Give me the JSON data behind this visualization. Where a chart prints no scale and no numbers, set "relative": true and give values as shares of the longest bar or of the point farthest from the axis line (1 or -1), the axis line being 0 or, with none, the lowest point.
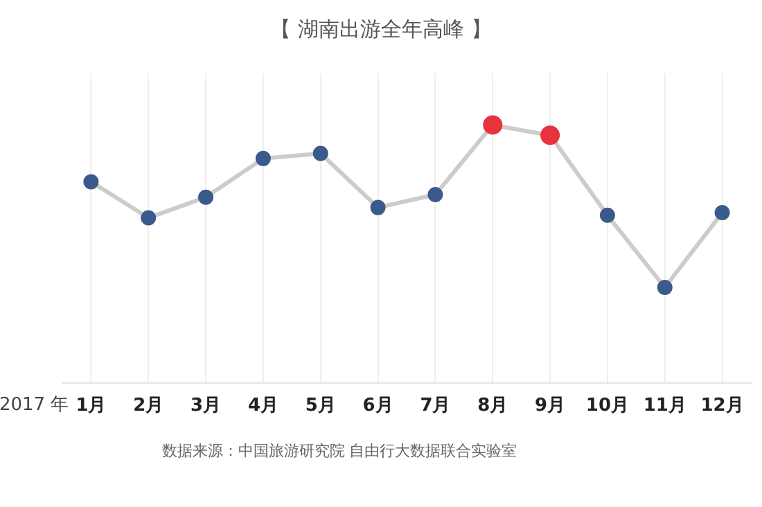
{
  "chart_data": {
    "type": "line",
    "title": "【 湖南出游全年高峰 】",
    "xlabel": "2017 年",
    "categories": [
      "1月",
      "2月",
      "3月",
      "4月",
      "5月",
      "6月",
      "7月",
      "8月",
      "9月",
      "10月",
      "11月",
      "12月"
    ],
    "relative": true,
    "series": [
      {
        "color": "#cccccc",
        "colors": [
          "#3b5a8c",
          "#3b5a8c",
          "#3b5a8c",
          "#3b5a8c",
          "#3b5a8c",
          "#3b5a8c",
          "#3b5a8c",
          "#e8323c",
          "#e8323c",
          "#3b5a8c",
          "#3b5a8c",
          "#3b5a8c"
        ],
        "values": [
          0.78,
          0.64,
          0.72,
          0.87,
          0.89,
          0.68,
          0.73,
          1,
          0.96,
          0.65,
          0.37,
          0.66
        ]
      }
    ],
    "marker": "circle",
    "grid": "x",
    "legend": false,
    "annotations": [
      "数据来源：中国旅游研究院 自由行大数据联合实验室"
    ]
  }
}
